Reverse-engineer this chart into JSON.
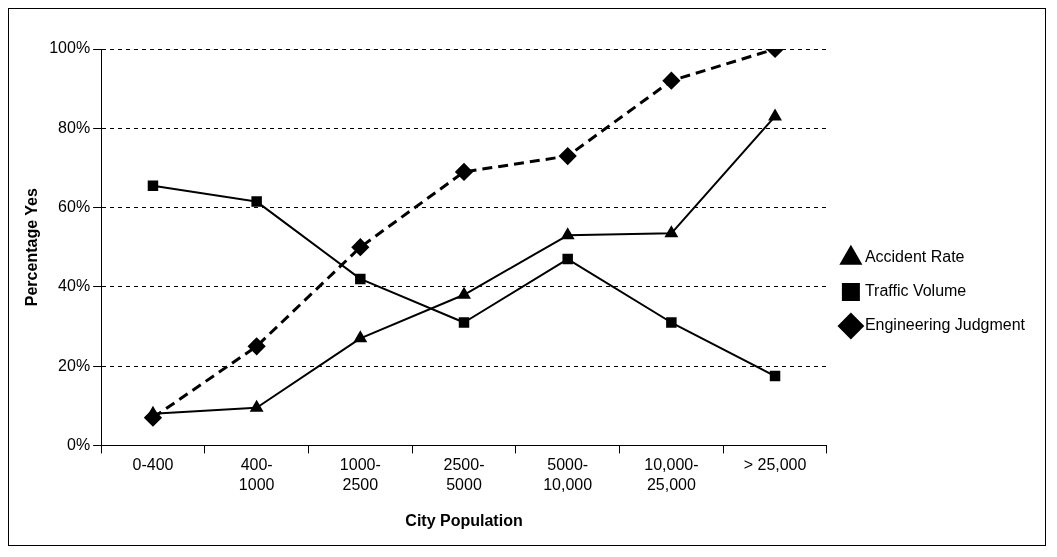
{
  "chart_data": {
    "type": "line",
    "xlabel": "City Population",
    "ylabel": "Percentage Yes",
    "categories": [
      "0-400",
      "400-1000",
      "1000-2500",
      "2500-5000",
      "5000-10,000",
      "10,000-25,000",
      "> 25,000"
    ],
    "series": [
      {
        "name": "Engineering Judgment",
        "color": "#000000",
        "marker": "diamond",
        "line_style": "dashed",
        "values": [
          7,
          25,
          50,
          69,
          73,
          92,
          100
        ]
      },
      {
        "name": "Traffic Volume",
        "color": "#000000",
        "marker": "square",
        "line_style": "solid",
        "values": [
          65.5,
          61.5,
          42,
          31,
          47,
          31,
          17.5
        ]
      },
      {
        "name": "Accident Rate",
        "color": "#000000",
        "marker": "triangle",
        "line_style": "solid",
        "values": [
          8,
          9.5,
          27,
          38,
          53,
          53.5,
          83
        ]
      }
    ],
    "ylim": [
      0,
      100
    ],
    "yticks": [
      {
        "value": 0,
        "label": "0%"
      },
      {
        "value": 20,
        "label": "20%"
      },
      {
        "value": 40,
        "label": "40%"
      },
      {
        "value": 60,
        "label": "60%"
      },
      {
        "value": 80,
        "label": "80%"
      },
      {
        "value": 100,
        "label": "100%"
      }
    ],
    "grid": "y",
    "legend": "right"
  }
}
